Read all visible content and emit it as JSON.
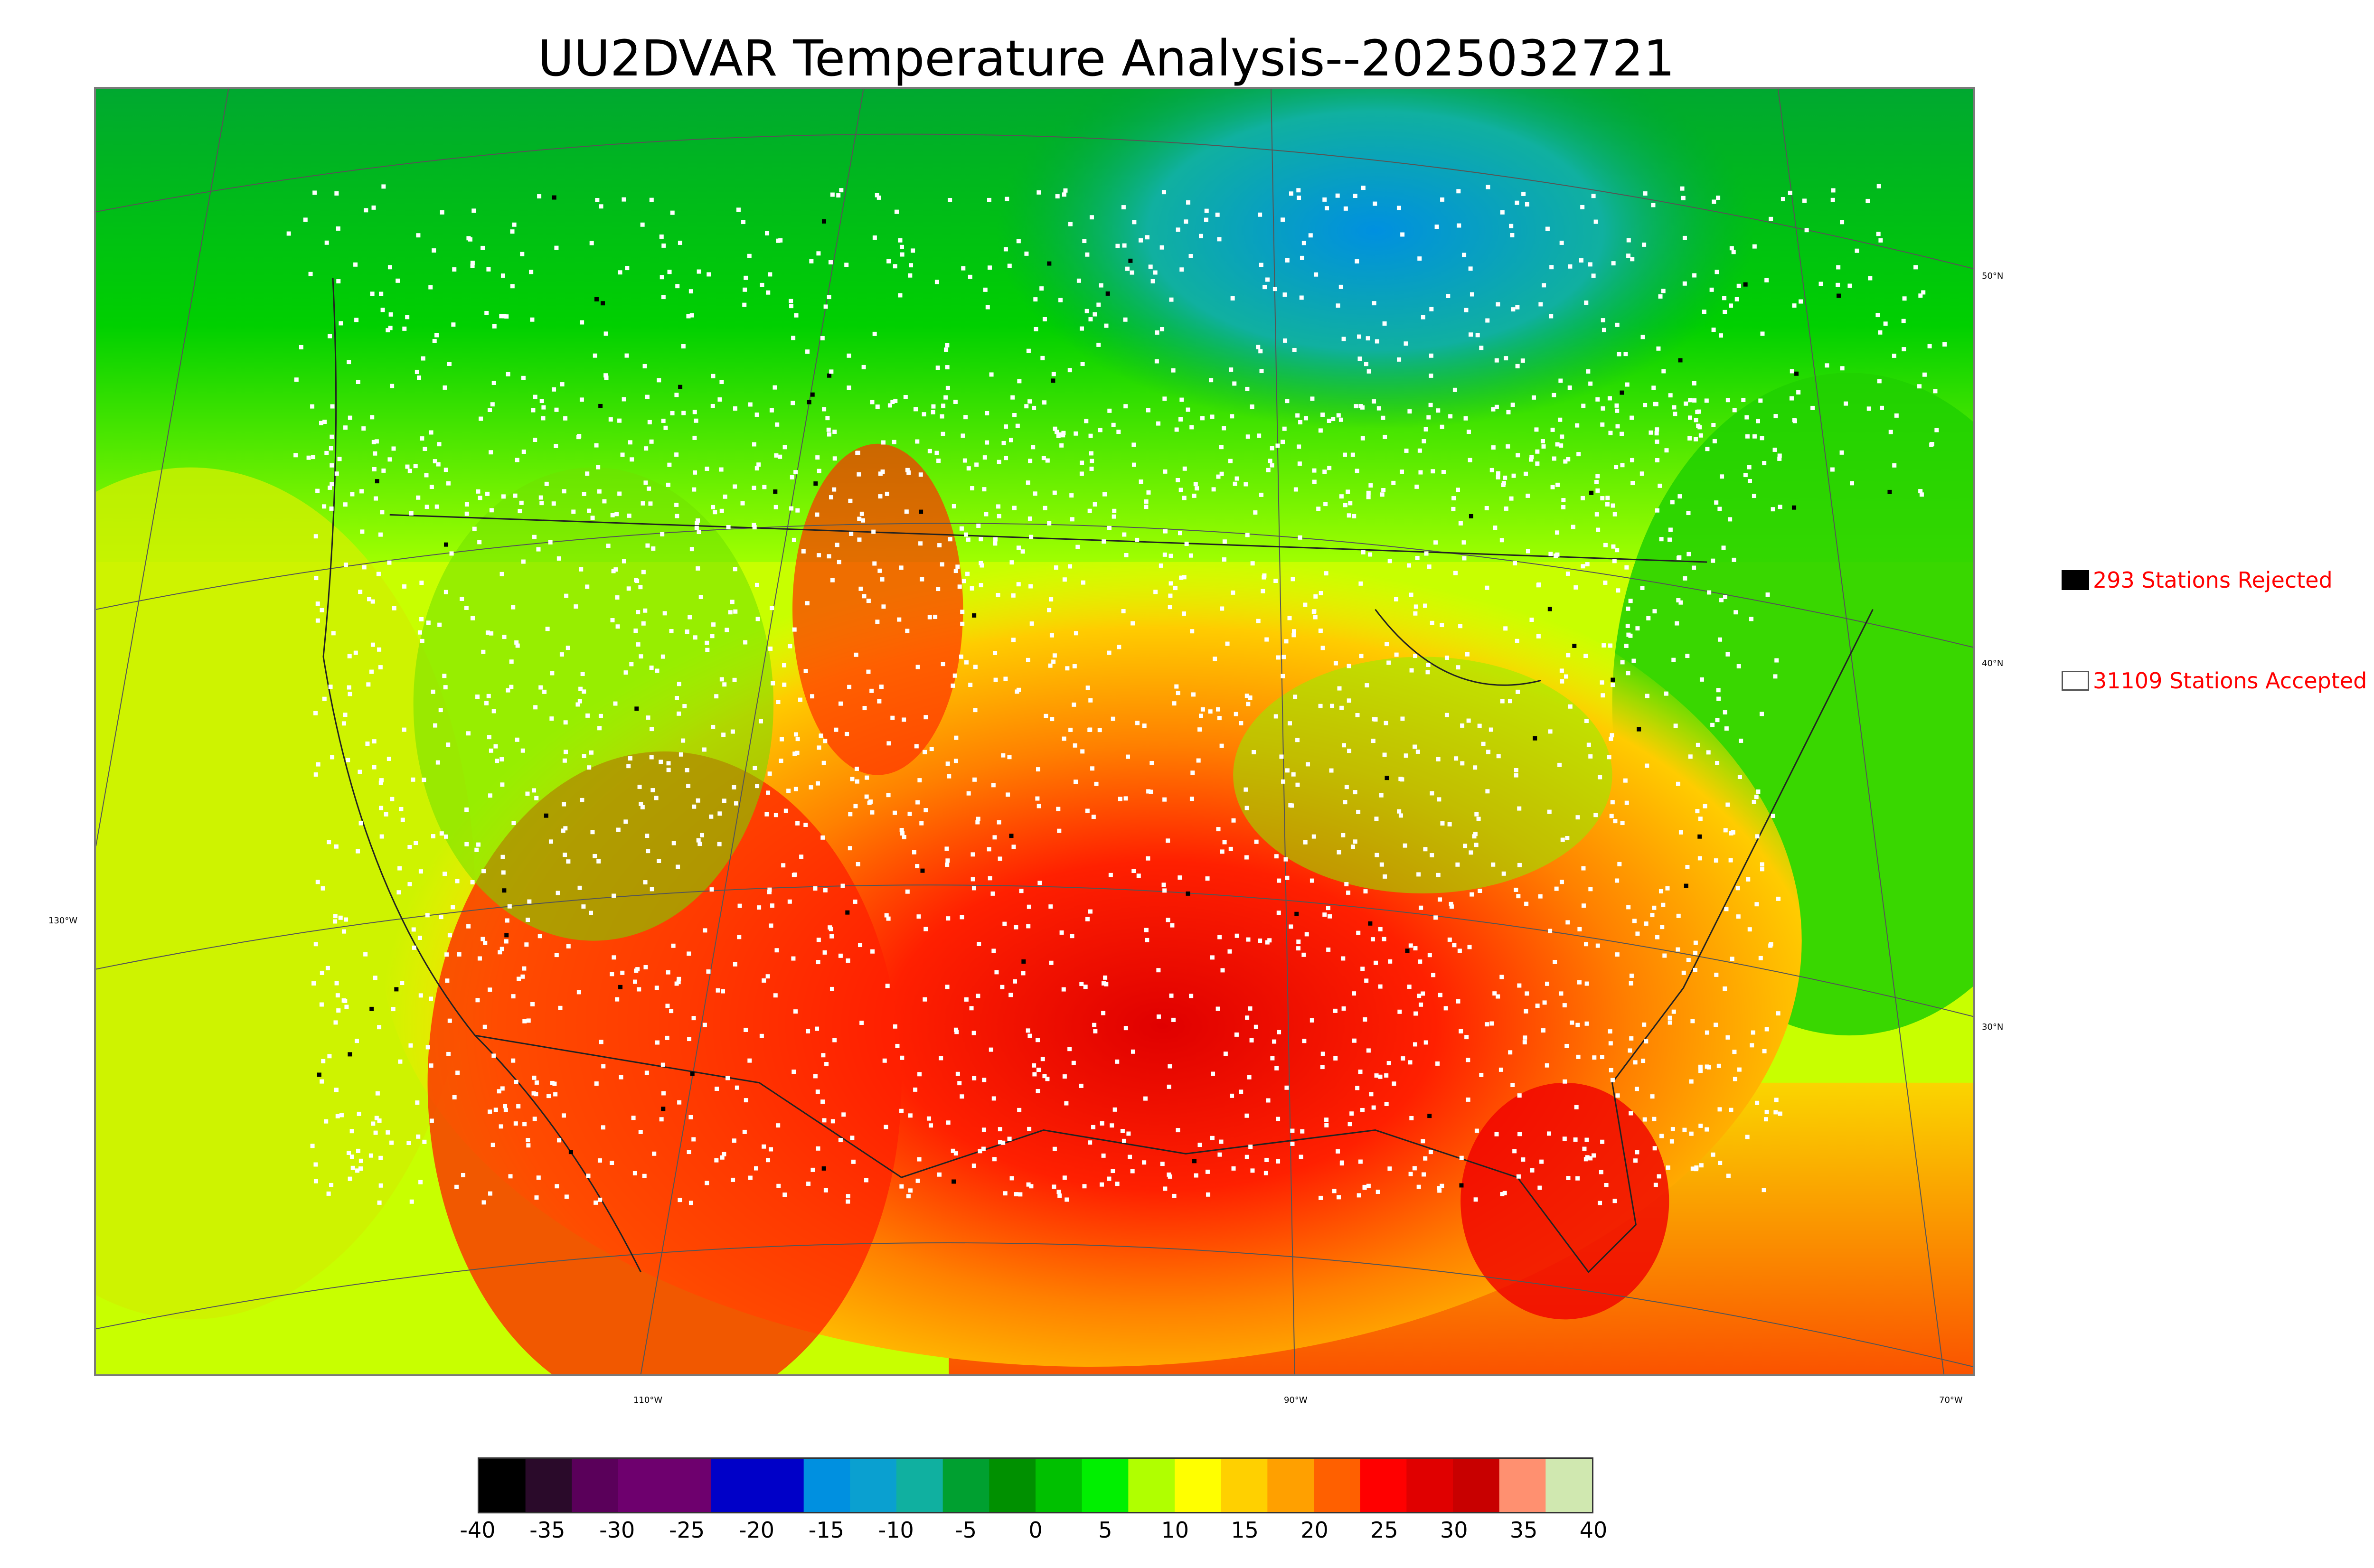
{
  "title": "UU2DVAR Temperature Analysis--2025032721",
  "legend": {
    "rejected_label": "293 Stations Rejected",
    "accepted_label": "31109 Stations Accepted",
    "text_color": "#ff0000"
  },
  "latitude_labels": [
    "50°N",
    "40°N",
    "30°N"
  ],
  "longitude_labels": [
    "130°W",
    "110°W",
    "90°W",
    "70°W"
  ],
  "colorbar": {
    "min": -40,
    "max": 40,
    "ticks": [
      "-40",
      "-35",
      "-30",
      "-25",
      "-20",
      "-15",
      "-10",
      "-5",
      "0",
      "5",
      "10",
      "15",
      "20",
      "25",
      "30",
      "35",
      "40"
    ],
    "colors": [
      "#000000",
      "#2a0a2a",
      "#5a005a",
      "#6e006e",
      "#6e006e",
      "#0000c8",
      "#0000c8",
      "#0090e0",
      "#0aa0d0",
      "#10b0a0",
      "#00a030",
      "#009000",
      "#00c000",
      "#00f000",
      "#b0ff00",
      "#ffff00",
      "#ffd000",
      "#ffa000",
      "#ff6000",
      "#ff0000",
      "#e00000",
      "#c80000",
      "#ff9070",
      "#d0e8b0"
    ]
  }
}
